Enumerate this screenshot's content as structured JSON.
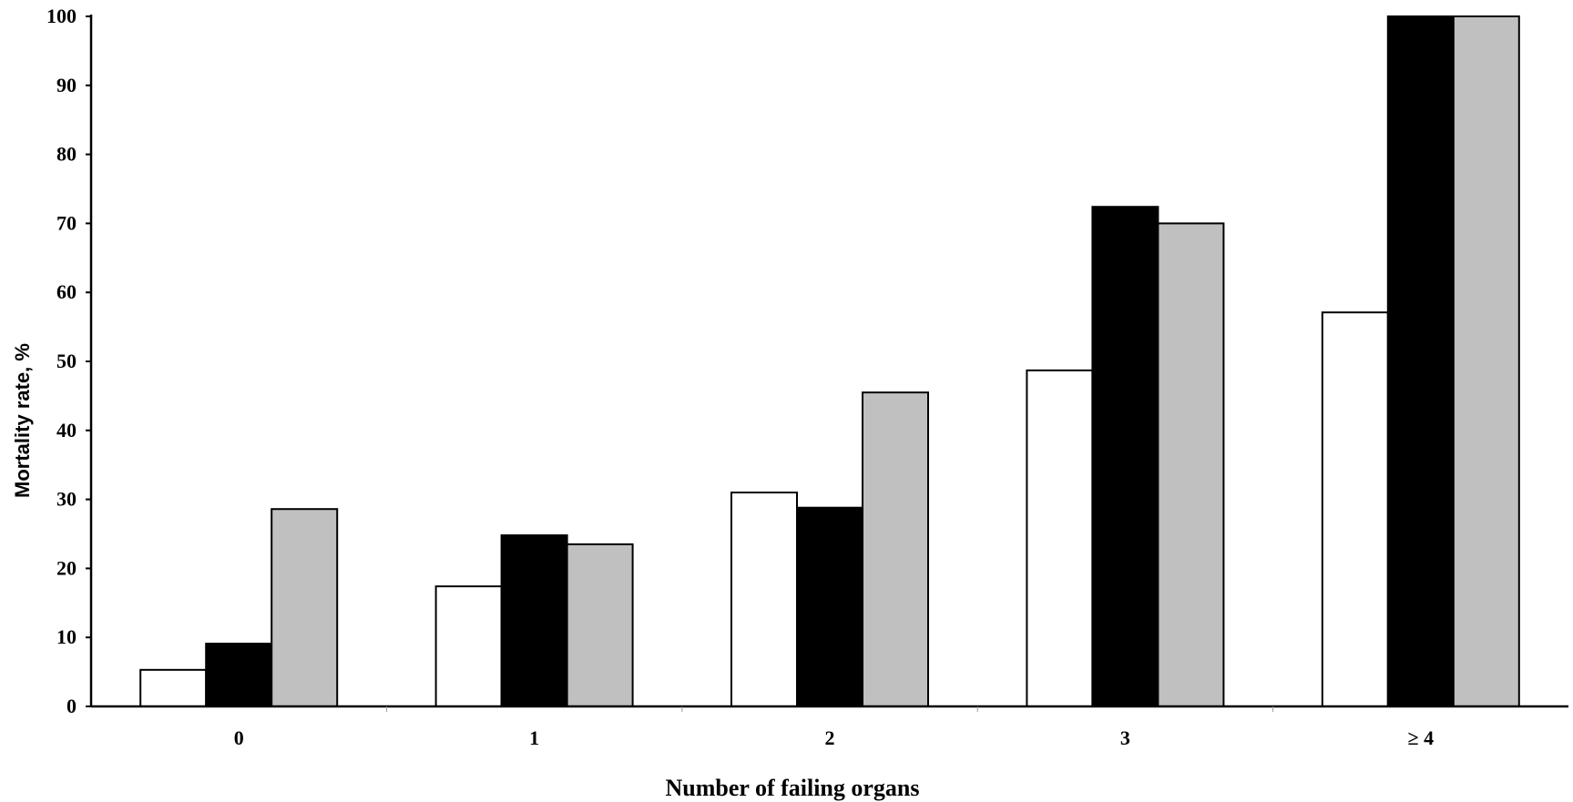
{
  "chart_data": {
    "type": "bar",
    "xlabel": "Number of failing organs",
    "ylabel": "Mortality rate, %",
    "ylim": [
      0,
      100
    ],
    "yticks": [
      0,
      10,
      20,
      30,
      40,
      50,
      60,
      70,
      80,
      90,
      100
    ],
    "categories": [
      "0",
      "1",
      "2",
      "3",
      "≥ 4"
    ],
    "series": [
      {
        "color": "#ffffff",
        "values": [
          5.3,
          17.4,
          31.0,
          48.7,
          57.1
        ]
      },
      {
        "color": "#000000",
        "values": [
          9.1,
          24.8,
          28.8,
          72.4,
          100
        ]
      },
      {
        "color": "#c0c0c0",
        "values": [
          28.6,
          23.5,
          45.5,
          70.0,
          100
        ]
      }
    ],
    "grid": false,
    "legend": "none"
  }
}
